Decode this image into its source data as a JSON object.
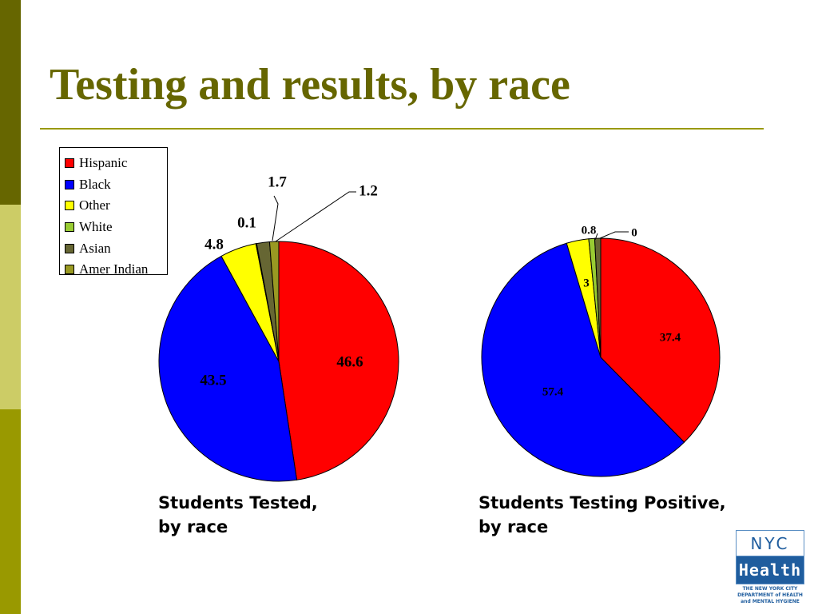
{
  "slide": {
    "title": "Testing and results, by race"
  },
  "colors": {
    "band_top": "#666600",
    "band_mid": "#cccc66",
    "band_bot": "#999900",
    "title": "#666600",
    "rule": "#999900"
  },
  "captions": {
    "left_line1": "Students Tested,",
    "left_line2": "by race",
    "right_line1": "Students Testing Positive,",
    "right_line2": "by race"
  },
  "logo": {
    "top": "NYC",
    "bottom": "Health",
    "line1": "THE NEW YORK CITY",
    "line2": "DEPARTMENT of HEALTH",
    "line3": "and MENTAL HYGIENE"
  },
  "legend": [
    {
      "label": "Hispanic",
      "color": "#ff0000"
    },
    {
      "label": "Black",
      "color": "#0000ff"
    },
    {
      "label": "Other",
      "color": "#ffff00"
    },
    {
      "label": "White",
      "color": "#99cc33"
    },
    {
      "label": "Asian",
      "color": "#666633"
    },
    {
      "label": "Amer Indian",
      "color": "#999922"
    }
  ],
  "chart_data": [
    {
      "type": "pie",
      "title": "",
      "categories": [
        "Hispanic",
        "Black",
        "Other",
        "White",
        "Asian",
        "Amer Indian"
      ],
      "values": [
        46.6,
        43.5,
        4.8,
        0.1,
        1.7,
        1.2
      ],
      "labels": [
        "46.6",
        "43.5",
        "4.8",
        "0.1",
        "1.7",
        "1.2"
      ],
      "colors": [
        "#ff0000",
        "#0000ff",
        "#ffff00",
        "#99cc33",
        "#666633",
        "#999922"
      ],
      "legend_position": "top-left"
    },
    {
      "type": "pie",
      "title": "",
      "categories": [
        "Hispanic",
        "Black",
        "Other",
        "White",
        "Asian",
        "Amer Indian"
      ],
      "values": [
        37.4,
        57.4,
        3,
        0.8,
        0.8,
        0
      ],
      "labels": [
        "37.4",
        "57.4",
        "3",
        "0.8",
        "",
        "0"
      ],
      "colors": [
        "#ff0000",
        "#0000ff",
        "#ffff00",
        "#99cc33",
        "#666633",
        "#999922"
      ]
    }
  ]
}
